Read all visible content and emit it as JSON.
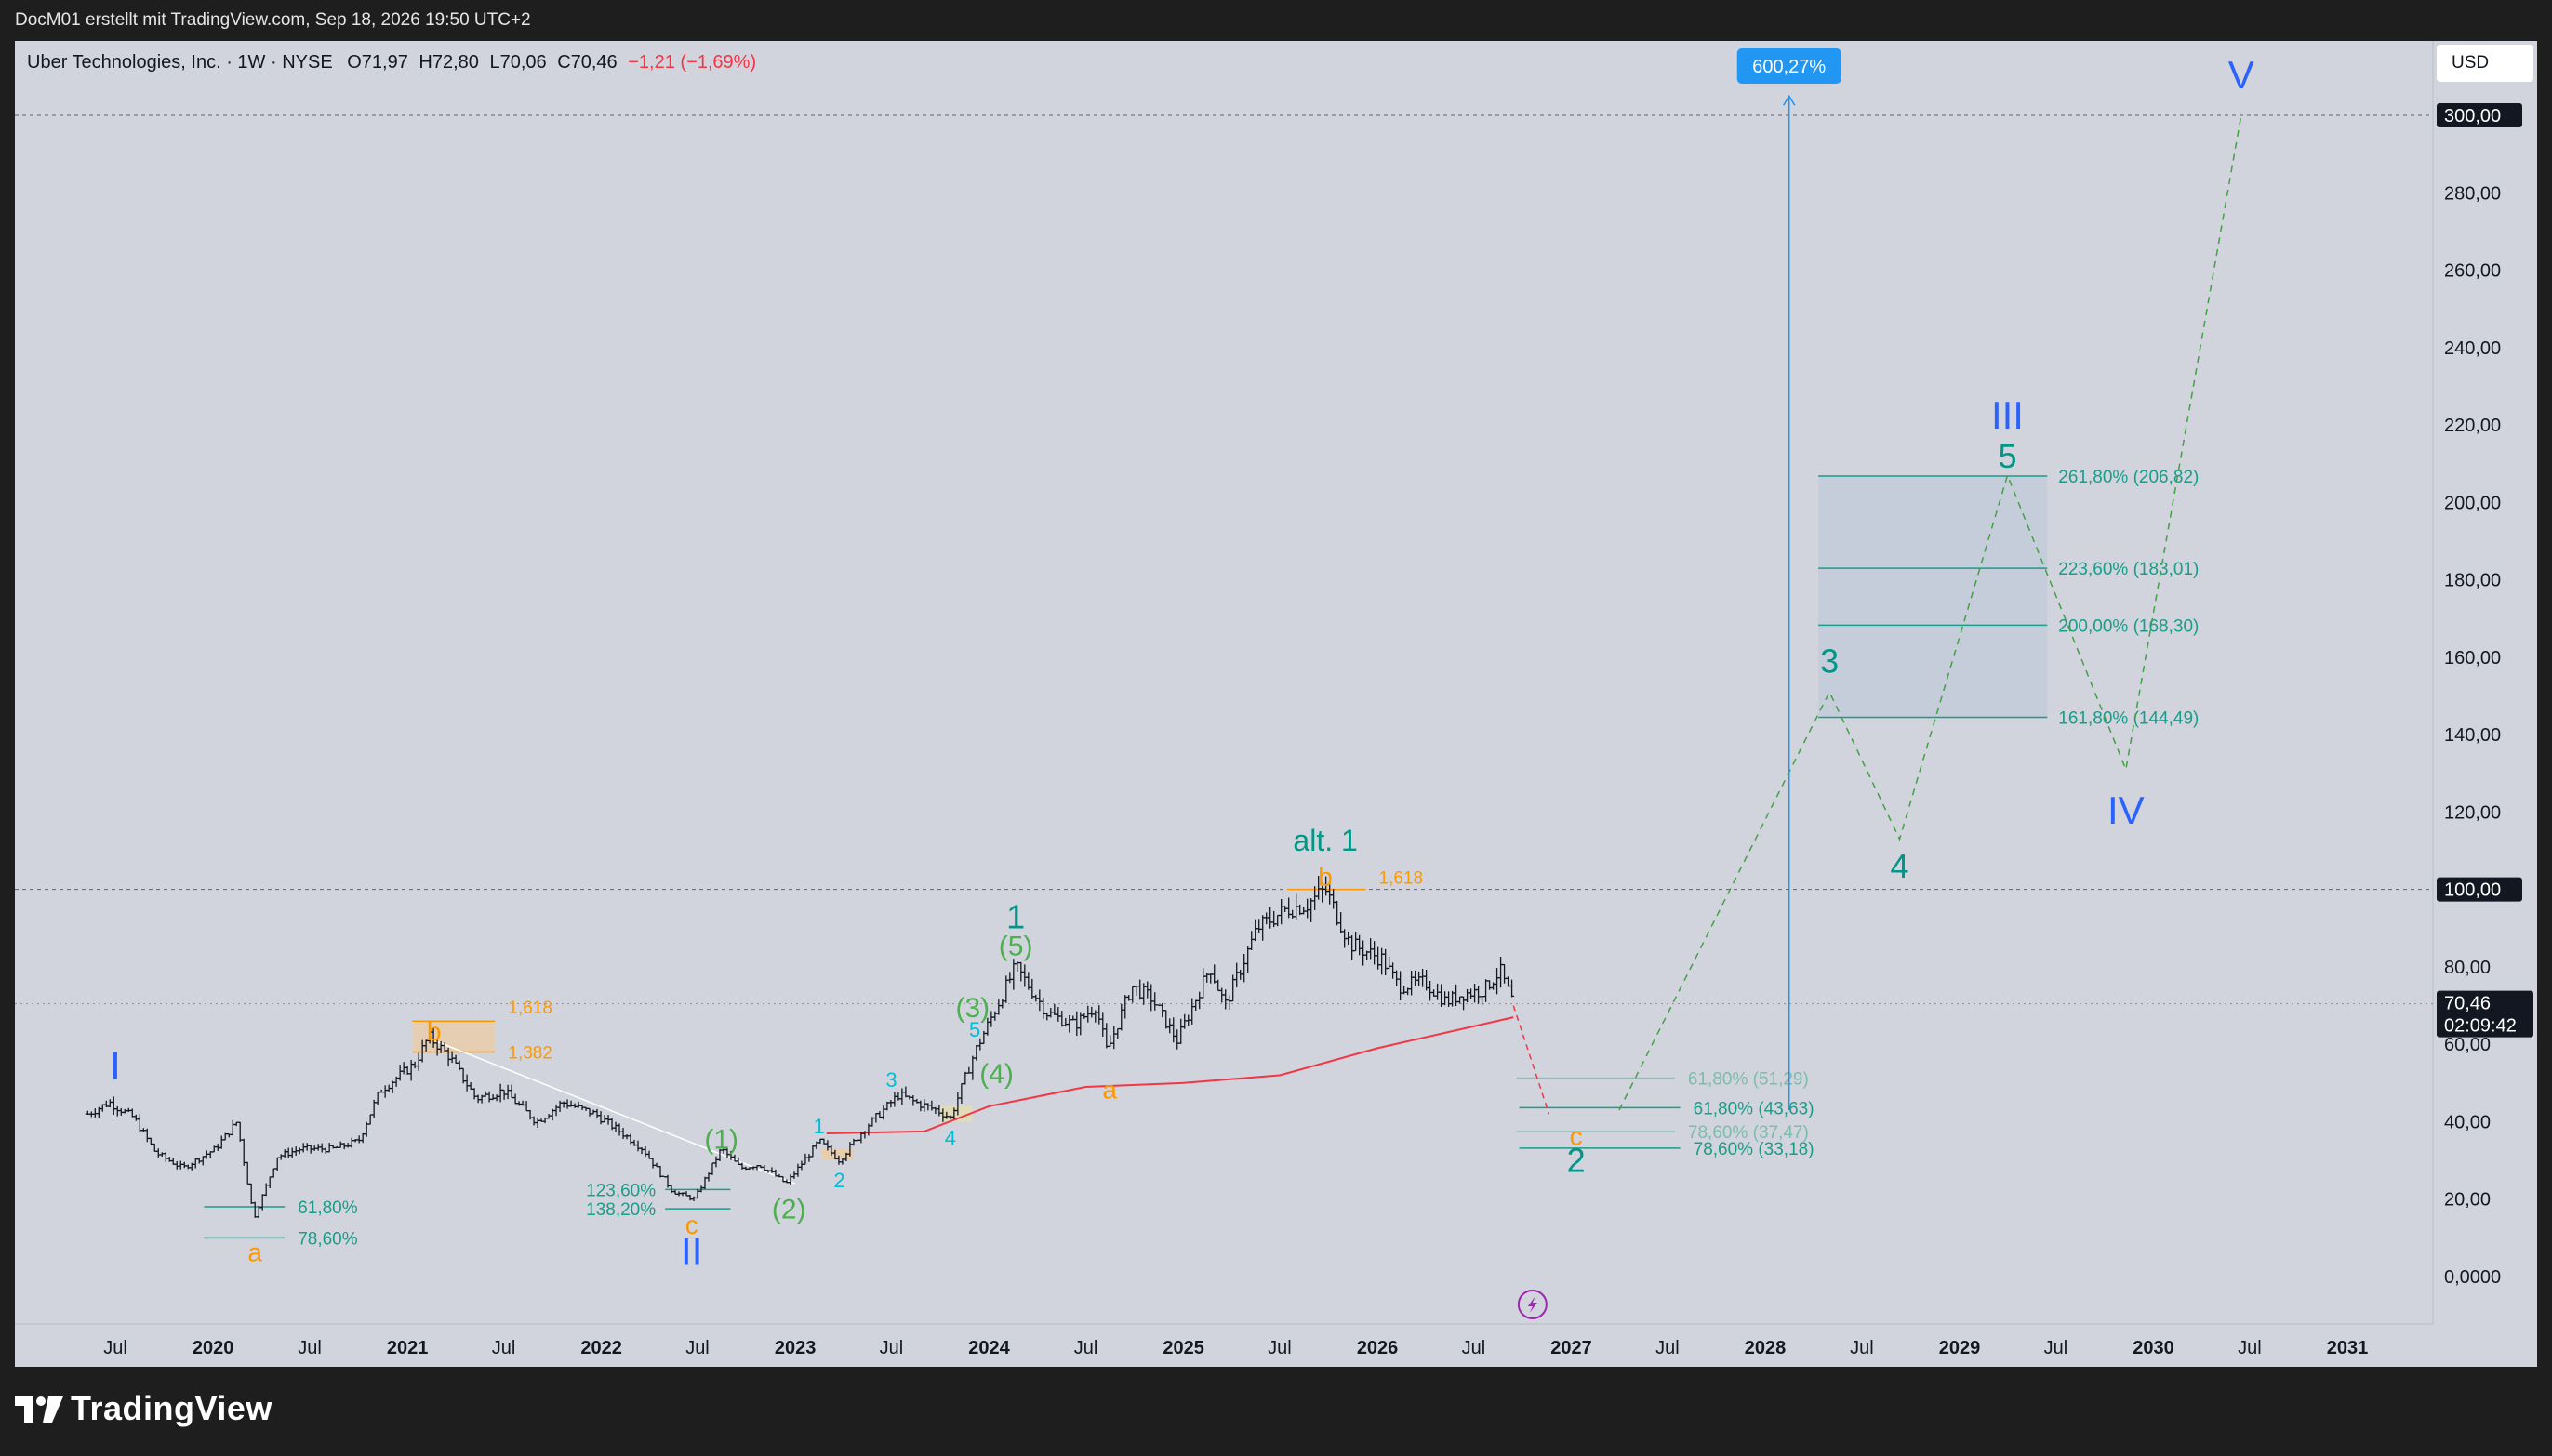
{
  "header": {
    "attribution": "DocM01 erstellt mit TradingView.com, Sep 18, 2026 19:50 UTC+2"
  },
  "symbol": {
    "name": "Uber Technologies, Inc. · 1W · NYSE",
    "open": "O71,97",
    "high": "H72,80",
    "low": "L70,06",
    "close": "C70,46",
    "change": "−1,21 (−1,69%)",
    "change_color": "#f23645"
  },
  "currency": "USD",
  "footer": {
    "brand": "TradingView"
  },
  "colors": {
    "background": "#d1d4dc",
    "candles": "#131722",
    "ma": "#f23645",
    "projection": "#43a047",
    "wave_blue": "#2962ff",
    "wave_teal": "#009688",
    "wave_orange": "#ff9800",
    "wave_green": "#4caf50",
    "wave_cyan": "#00bcd4",
    "measure": "#2196f3"
  },
  "chart_data": {
    "type": "candlestick",
    "timeframe": "1W",
    "ylim": [
      0,
      315
    ],
    "y_ticks": [
      "0,0000",
      "20,00",
      "40,00",
      "60,00",
      "80,00",
      "100,00",
      "120,00",
      "140,00",
      "160,00",
      "180,00",
      "200,00",
      "220,00",
      "240,00",
      "260,00",
      "280,00",
      "300,00"
    ],
    "x_ticks": [
      "Jul",
      "2020",
      "Jul",
      "2021",
      "Jul",
      "2022",
      "Jul",
      "2023",
      "Jul",
      "2024",
      "Jul",
      "2025",
      "Jul",
      "2026",
      "Jul",
      "2027",
      "Jul",
      "2028",
      "Jul",
      "2029",
      "Jul",
      "2030",
      "Jul",
      "2031"
    ],
    "x_tick_dates": [
      "2019-07-01",
      "2020-01-01",
      "2020-07-01",
      "2021-01-01",
      "2021-07-01",
      "2022-01-01",
      "2022-07-01",
      "2023-01-01",
      "2023-07-01",
      "2024-01-01",
      "2024-07-01",
      "2025-01-01",
      "2025-07-01",
      "2026-01-01",
      "2026-07-01",
      "2027-01-01",
      "2027-07-01",
      "2028-01-01",
      "2028-07-01",
      "2029-01-01",
      "2029-07-01",
      "2030-01-01",
      "2030-07-01",
      "2031-01-01"
    ],
    "price_path": [
      [
        "2019-05-10",
        42
      ],
      [
        "2019-06-20",
        45
      ],
      [
        "2019-08-05",
        41
      ],
      [
        "2019-09-15",
        32
      ],
      [
        "2019-11-05",
        28
      ],
      [
        "2020-01-05",
        33
      ],
      [
        "2020-02-15",
        40
      ],
      [
        "2020-03-18",
        15
      ],
      [
        "2020-05-01",
        31
      ],
      [
        "2020-06-15",
        33
      ],
      [
        "2020-08-15",
        33
      ],
      [
        "2020-10-01",
        35
      ],
      [
        "2020-11-10",
        48
      ],
      [
        "2021-01-15",
        55
      ],
      [
        "2021-02-10",
        62
      ],
      [
        "2021-03-20",
        57
      ],
      [
        "2021-05-10",
        46
      ],
      [
        "2021-07-01",
        48
      ],
      [
        "2021-09-01",
        40
      ],
      [
        "2021-10-20",
        45
      ],
      [
        "2021-12-20",
        42
      ],
      [
        "2022-02-10",
        37
      ],
      [
        "2022-03-20",
        33
      ],
      [
        "2022-05-15",
        22
      ],
      [
        "2022-06-25",
        20
      ],
      [
        "2022-08-15",
        33
      ],
      [
        "2022-09-20",
        28
      ],
      [
        "2022-10-25",
        29
      ],
      [
        "2022-12-15",
        24
      ],
      [
        "2023-02-15",
        35
      ],
      [
        "2023-03-25",
        30
      ],
      [
        "2023-05-10",
        38
      ],
      [
        "2023-07-15",
        47
      ],
      [
        "2023-08-15",
        45
      ],
      [
        "2023-09-25",
        43
      ],
      [
        "2023-10-20",
        41
      ],
      [
        "2023-12-05",
        58
      ],
      [
        "2024-02-20",
        80
      ],
      [
        "2024-04-20",
        68
      ],
      [
        "2024-06-10",
        65
      ],
      [
        "2024-07-20",
        70
      ],
      [
        "2024-08-10",
        58
      ],
      [
        "2024-09-25",
        75
      ],
      [
        "2024-11-01",
        72
      ],
      [
        "2024-12-20",
        61
      ],
      [
        "2025-02-20",
        80
      ],
      [
        "2025-03-20",
        70
      ],
      [
        "2025-05-20",
        90
      ],
      [
        "2025-07-15",
        95
      ],
      [
        "2025-08-20",
        96
      ],
      [
        "2025-09-25",
        100
      ],
      [
        "2025-11-10",
        86
      ],
      [
        "2026-01-10",
        82
      ],
      [
        "2026-02-10",
        75
      ],
      [
        "2026-04-01",
        76
      ],
      [
        "2026-05-10",
        71
      ],
      [
        "2026-06-10",
        73
      ],
      [
        "2026-07-20",
        74
      ],
      [
        "2026-08-20",
        79
      ],
      [
        "2026-09-14",
        70.46
      ]
    ],
    "current_price": {
      "value": 70.46,
      "label": "70,46",
      "countdown": "02:09:42"
    },
    "price_labels": [
      {
        "value": 300,
        "label": "300,00"
      },
      {
        "value": 100,
        "label": "100,00"
      }
    ],
    "moving_average": [
      [
        "2023-03-01",
        37
      ],
      [
        "2023-09-01",
        37.5
      ],
      [
        "2024-01-01",
        44
      ],
      [
        "2024-07-01",
        49
      ],
      [
        "2025-01-01",
        50
      ],
      [
        "2025-07-01",
        52
      ],
      [
        "2026-01-01",
        59
      ],
      [
        "2026-09-14",
        67
      ]
    ],
    "trendline": [
      [
        "2021-02-20",
        61
      ],
      [
        "2023-01-01",
        24
      ]
    ],
    "projection_path": [
      [
        "2026-09-14",
        70
      ],
      [
        "2026-11-20",
        42
      ],
      [
        "2027-04-01",
        43
      ],
      [
        "2028-05-01",
        151
      ],
      [
        "2028-09-10",
        113
      ],
      [
        "2029-04-01",
        207
      ],
      [
        "2029-11-10",
        131
      ],
      [
        "2030-06-15",
        300
      ]
    ],
    "measure": {
      "label": "600,27%",
      "x": "2028-02-15",
      "from": 43,
      "to": 305
    },
    "fib_zone": {
      "x0": "2028-04-10",
      "x1": "2029-06-15",
      "y0": 144.49,
      "y1": 206.82
    },
    "fib_upper": [
      {
        "y": 206.82,
        "label": "261,80% (206,82)"
      },
      {
        "y": 183.01,
        "label": "223,60% (183,01)"
      },
      {
        "y": 168.3,
        "label": "200,00% (168,30)"
      },
      {
        "y": 144.49,
        "label": "161,80% (144,49)"
      }
    ],
    "fib_lower": [
      {
        "y": 51.29,
        "label": "61,80% (51,29)",
        "faded": true
      },
      {
        "y": 43.63,
        "label": "61,80% (43,63)",
        "faded": false
      },
      {
        "y": 37.47,
        "label": "78,60% (37,47)",
        "faded": true
      },
      {
        "y": 33.18,
        "label": "78,60% (33,18)",
        "faded": false
      }
    ],
    "fib_2020": [
      {
        "y": 18,
        "label": "61,80%"
      },
      {
        "y": 10,
        "label": "78,60%"
      }
    ],
    "fib_2022": [
      {
        "y": 22.5,
        "label": "123,60%"
      },
      {
        "y": 17.5,
        "label": "138,20%"
      }
    ],
    "fib_2021_ext": [
      {
        "y": 66,
        "label": "1,618"
      },
      {
        "y": 58,
        "label": "1,382"
      }
    ],
    "fib_2025_ext": {
      "y": 100,
      "label": "1,618"
    },
    "wave_labels": [
      {
        "text": "I",
        "date": "2019-07-01",
        "price": 51,
        "color": "wave_blue",
        "size": 42
      },
      {
        "text": "a",
        "date": "2020-03-20",
        "price": 4,
        "color": "wave_orange",
        "size": 28
      },
      {
        "text": "b",
        "date": "2021-02-20",
        "price": 61,
        "color": "wave_orange",
        "size": 28
      },
      {
        "text": "c",
        "date": "2022-06-20",
        "price": 11,
        "color": "wave_orange",
        "size": 28
      },
      {
        "text": "II",
        "date": "2022-06-20",
        "price": 3,
        "color": "wave_blue",
        "size": 42
      },
      {
        "text": "(1)",
        "date": "2022-08-15",
        "price": 33,
        "color": "wave_green",
        "size": 30
      },
      {
        "text": "(2)",
        "date": "2022-12-20",
        "price": 15,
        "color": "wave_green",
        "size": 30
      },
      {
        "text": "1",
        "date": "2023-02-15",
        "price": 37,
        "color": "wave_cyan",
        "size": 22
      },
      {
        "text": "2",
        "date": "2023-03-25",
        "price": 23,
        "color": "wave_cyan",
        "size": 22
      },
      {
        "text": "3",
        "date": "2023-07-01",
        "price": 49,
        "color": "wave_cyan",
        "size": 22
      },
      {
        "text": "4",
        "date": "2023-10-20",
        "price": 34,
        "color": "wave_cyan",
        "size": 22
      },
      {
        "text": "5",
        "date": "2023-12-05",
        "price": 62,
        "color": "wave_cyan",
        "size": 22
      },
      {
        "text": "(3)",
        "date": "2023-12-01",
        "price": 67,
        "color": "wave_green",
        "size": 30
      },
      {
        "text": "(4)",
        "date": "2024-01-15",
        "price": 50,
        "color": "wave_green",
        "size": 30
      },
      {
        "text": "(5)",
        "date": "2024-02-20",
        "price": 83,
        "color": "wave_green",
        "size": 30
      },
      {
        "text": "1",
        "date": "2024-02-20",
        "price": 90,
        "color": "wave_teal",
        "size": 36
      },
      {
        "text": "a",
        "date": "2024-08-15",
        "price": 46,
        "color": "wave_orange",
        "size": 28
      },
      {
        "text": "alt. 1",
        "date": "2025-09-25",
        "price": 110,
        "color": "wave_teal",
        "size": 32
      },
      {
        "text": "b",
        "date": "2025-09-25",
        "price": 101,
        "color": "wave_orange",
        "size": 28
      },
      {
        "text": "c",
        "date": "2027-01-10",
        "price": 34,
        "color": "wave_orange",
        "size": 28
      },
      {
        "text": "2",
        "date": "2027-01-10",
        "price": 27,
        "color": "wave_teal",
        "size": 36
      },
      {
        "text": "3",
        "date": "2028-05-01",
        "price": 156,
        "color": "wave_teal",
        "size": 36
      },
      {
        "text": "4",
        "date": "2028-09-10",
        "price": 103,
        "color": "wave_teal",
        "size": 36
      },
      {
        "text": "5",
        "date": "2029-04-01",
        "price": 209,
        "color": "wave_teal",
        "size": 36
      },
      {
        "text": "III",
        "date": "2029-04-01",
        "price": 219,
        "color": "wave_blue",
        "size": 42
      },
      {
        "text": "IV",
        "date": "2029-11-10",
        "price": 117,
        "color": "wave_blue",
        "size": 42
      },
      {
        "text": "V",
        "date": "2030-06-15",
        "price": 307,
        "color": "wave_blue",
        "size": 42
      }
    ]
  }
}
